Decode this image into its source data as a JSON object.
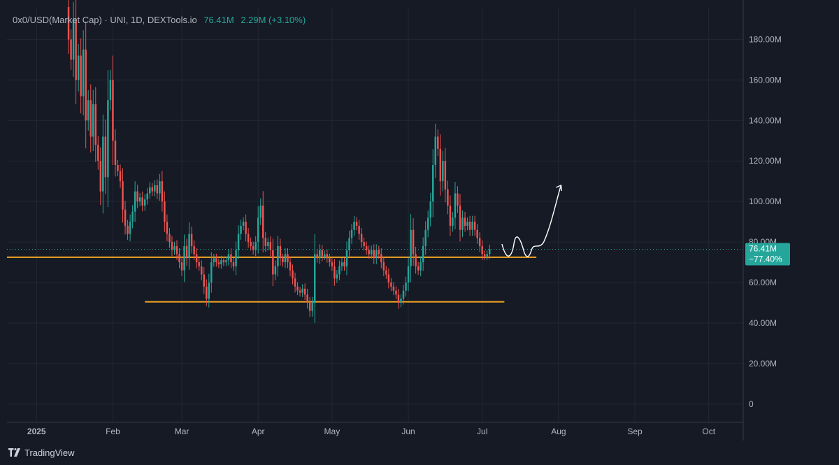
{
  "legend": {
    "symbol": "0x0/USD(Market Cap)  · UNI, 1D, DEXTools.io",
    "last": "76.41M",
    "change": "2.29M (+3.10%)"
  },
  "price_tag": {
    "value": "76.41M",
    "pct": "−77.40%"
  },
  "footer": {
    "brand": "TradingView"
  },
  "colors": {
    "background": "#161a25",
    "up": "#26a69a",
    "down": "#ef5350",
    "support": "#f5a623",
    "grid": "#232733",
    "annotation": "#ffffff"
  },
  "chart_data": {
    "type": "candlestick",
    "title": "0x0/USD(Market Cap) · UNI, 1D, DEXTools.io",
    "y_tick_labels": [
      "0",
      "20.00M",
      "40.00M",
      "60.00M",
      "80.00M",
      "100.00M",
      "120.00M",
      "140.00M",
      "160.00M",
      "180.00M"
    ],
    "y_ticks": [
      0,
      20,
      40,
      60,
      80,
      100,
      120,
      140,
      160,
      180
    ],
    "y_unit": "M USD",
    "ylim": [
      -9,
      196
    ],
    "x_tick_labels": [
      "2025",
      "Feb",
      "Mar",
      "Apr",
      "May",
      "Jun",
      "Jul",
      "Aug",
      "Sep",
      "Oct"
    ],
    "x_tick_dates": [
      "2025-01-01",
      "2025-02-01",
      "2025-03-01",
      "2025-04-01",
      "2025-05-01",
      "2025-06-01",
      "2025-07-01",
      "2025-08-01",
      "2025-09-01",
      "2025-10-01"
    ],
    "xlim": [
      "2024-12-20",
      "2025-10-15"
    ],
    "grid": true,
    "last_value": 76.41,
    "candles_close": [
      [
        "2025-01-13",
        196
      ],
      [
        "2025-01-14",
        180
      ],
      [
        "2025-01-15",
        170
      ],
      [
        "2025-01-16",
        190
      ],
      [
        "2025-01-17",
        160
      ],
      [
        "2025-01-18",
        172
      ],
      [
        "2025-01-19",
        152
      ],
      [
        "2025-01-20",
        175
      ],
      [
        "2025-01-21",
        140
      ],
      [
        "2025-01-22",
        150
      ],
      [
        "2025-01-23",
        132
      ],
      [
        "2025-01-24",
        148
      ],
      [
        "2025-01-25",
        128
      ],
      [
        "2025-01-26",
        120
      ],
      [
        "2025-01-27",
        105
      ],
      [
        "2025-01-28",
        132
      ],
      [
        "2025-01-29",
        112
      ],
      [
        "2025-01-30",
        150
      ],
      [
        "2025-01-31",
        160
      ],
      [
        "2025-02-01",
        130
      ],
      [
        "2025-02-02",
        118
      ],
      [
        "2025-02-03",
        115
      ],
      [
        "2025-02-04",
        110
      ],
      [
        "2025-02-05",
        96
      ],
      [
        "2025-02-06",
        88
      ],
      [
        "2025-02-07",
        84
      ],
      [
        "2025-02-08",
        90
      ],
      [
        "2025-02-09",
        95
      ],
      [
        "2025-02-10",
        105
      ],
      [
        "2025-02-11",
        100
      ],
      [
        "2025-02-12",
        102
      ],
      [
        "2025-02-13",
        98
      ],
      [
        "2025-02-14",
        101
      ],
      [
        "2025-02-15",
        104
      ],
      [
        "2025-02-16",
        107
      ],
      [
        "2025-02-17",
        105
      ],
      [
        "2025-02-18",
        108
      ],
      [
        "2025-02-19",
        104
      ],
      [
        "2025-02-20",
        110
      ],
      [
        "2025-02-21",
        100
      ],
      [
        "2025-02-22",
        90
      ],
      [
        "2025-02-23",
        84
      ],
      [
        "2025-02-24",
        80
      ],
      [
        "2025-02-25",
        76
      ],
      [
        "2025-02-26",
        78
      ],
      [
        "2025-02-27",
        74
      ],
      [
        "2025-02-28",
        70
      ],
      [
        "2025-03-01",
        66
      ],
      [
        "2025-03-02",
        78
      ],
      [
        "2025-03-03",
        72
      ],
      [
        "2025-03-04",
        84
      ],
      [
        "2025-03-05",
        78
      ],
      [
        "2025-03-06",
        74
      ],
      [
        "2025-03-07",
        70
      ],
      [
        "2025-03-08",
        68
      ],
      [
        "2025-03-09",
        64
      ],
      [
        "2025-03-10",
        58
      ],
      [
        "2025-03-11",
        52
      ],
      [
        "2025-03-12",
        60
      ],
      [
        "2025-03-13",
        70
      ],
      [
        "2025-03-14",
        72
      ],
      [
        "2025-03-15",
        70
      ],
      [
        "2025-03-16",
        69
      ],
      [
        "2025-03-17",
        71
      ],
      [
        "2025-03-18",
        70
      ],
      [
        "2025-03-19",
        71
      ],
      [
        "2025-03-20",
        74
      ],
      [
        "2025-03-21",
        70
      ],
      [
        "2025-03-22",
        68
      ],
      [
        "2025-03-23",
        76
      ],
      [
        "2025-03-24",
        84
      ],
      [
        "2025-03-25",
        88
      ],
      [
        "2025-03-26",
        90
      ],
      [
        "2025-03-27",
        84
      ],
      [
        "2025-03-28",
        80
      ],
      [
        "2025-03-29",
        78
      ],
      [
        "2025-03-30",
        76
      ],
      [
        "2025-03-31",
        80
      ],
      [
        "2025-04-01",
        92
      ],
      [
        "2025-04-02",
        98
      ],
      [
        "2025-04-03",
        82
      ],
      [
        "2025-04-04",
        78
      ],
      [
        "2025-04-05",
        80
      ],
      [
        "2025-04-06",
        76
      ],
      [
        "2025-04-07",
        64
      ],
      [
        "2025-04-08",
        68
      ],
      [
        "2025-04-09",
        78
      ],
      [
        "2025-04-10",
        72
      ],
      [
        "2025-04-11",
        70
      ],
      [
        "2025-04-12",
        74
      ],
      [
        "2025-04-13",
        70
      ],
      [
        "2025-04-14",
        66
      ],
      [
        "2025-04-15",
        62
      ],
      [
        "2025-04-16",
        58
      ],
      [
        "2025-04-17",
        56
      ],
      [
        "2025-04-18",
        55
      ],
      [
        "2025-04-19",
        57
      ],
      [
        "2025-04-20",
        54
      ],
      [
        "2025-04-21",
        50
      ],
      [
        "2025-04-22",
        46
      ],
      [
        "2025-04-23",
        50
      ],
      [
        "2025-04-24",
        74
      ],
      [
        "2025-04-25",
        72
      ],
      [
        "2025-04-26",
        76
      ],
      [
        "2025-04-27",
        73
      ],
      [
        "2025-04-28",
        74
      ],
      [
        "2025-04-29",
        72
      ],
      [
        "2025-04-30",
        70
      ],
      [
        "2025-05-01",
        68
      ],
      [
        "2025-05-02",
        62
      ],
      [
        "2025-05-03",
        64
      ],
      [
        "2025-05-04",
        68
      ],
      [
        "2025-05-05",
        70
      ],
      [
        "2025-05-06",
        68
      ],
      [
        "2025-05-07",
        76
      ],
      [
        "2025-05-08",
        82
      ],
      [
        "2025-05-09",
        86
      ],
      [
        "2025-05-10",
        90
      ],
      [
        "2025-05-11",
        88
      ],
      [
        "2025-05-12",
        84
      ],
      [
        "2025-05-13",
        80
      ],
      [
        "2025-05-14",
        78
      ],
      [
        "2025-05-15",
        76
      ],
      [
        "2025-05-16",
        74
      ],
      [
        "2025-05-17",
        76
      ],
      [
        "2025-05-18",
        72
      ],
      [
        "2025-05-19",
        76
      ],
      [
        "2025-05-20",
        74
      ],
      [
        "2025-05-21",
        70
      ],
      [
        "2025-05-22",
        66
      ],
      [
        "2025-05-23",
        64
      ],
      [
        "2025-05-24",
        60
      ],
      [
        "2025-05-25",
        58
      ],
      [
        "2025-05-26",
        56
      ],
      [
        "2025-05-27",
        54
      ],
      [
        "2025-05-28",
        50
      ],
      [
        "2025-05-29",
        52
      ],
      [
        "2025-05-30",
        56
      ],
      [
        "2025-05-31",
        60
      ],
      [
        "2025-06-01",
        68
      ],
      [
        "2025-06-02",
        86
      ],
      [
        "2025-06-03",
        74
      ],
      [
        "2025-06-04",
        68
      ],
      [
        "2025-06-05",
        66
      ],
      [
        "2025-06-06",
        70
      ],
      [
        "2025-06-07",
        78
      ],
      [
        "2025-06-08",
        86
      ],
      [
        "2025-06-09",
        92
      ],
      [
        "2025-06-10",
        100
      ],
      [
        "2025-06-11",
        118
      ],
      [
        "2025-06-12",
        132
      ],
      [
        "2025-06-13",
        126
      ],
      [
        "2025-06-14",
        110
      ],
      [
        "2025-06-15",
        120
      ],
      [
        "2025-06-16",
        106
      ],
      [
        "2025-06-17",
        98
      ],
      [
        "2025-06-18",
        88
      ],
      [
        "2025-06-19",
        92
      ],
      [
        "2025-06-20",
        104
      ],
      [
        "2025-06-21",
        98
      ],
      [
        "2025-06-22",
        86
      ],
      [
        "2025-06-23",
        92
      ],
      [
        "2025-06-24",
        88
      ],
      [
        "2025-06-25",
        90
      ],
      [
        "2025-06-26",
        86
      ],
      [
        "2025-06-27",
        90
      ],
      [
        "2025-06-28",
        86
      ],
      [
        "2025-06-29",
        82
      ],
      [
        "2025-06-30",
        78
      ],
      [
        "2025-07-01",
        74
      ],
      [
        "2025-07-02",
        73
      ],
      [
        "2025-07-03",
        74
      ],
      [
        "2025-07-04",
        76.41
      ]
    ],
    "annotations": [
      {
        "type": "horizontal-line",
        "label": "",
        "value": 72.5,
        "from": "2024-12-20",
        "to": "2025-07-23",
        "color": "#f5a623"
      },
      {
        "type": "horizontal-line",
        "label": "",
        "value": 50.5,
        "from": "2025-02-14",
        "to": "2025-07-10",
        "color": "#f5a623"
      },
      {
        "type": "projection-arrow",
        "label": "",
        "color": "#ffffff"
      }
    ]
  }
}
